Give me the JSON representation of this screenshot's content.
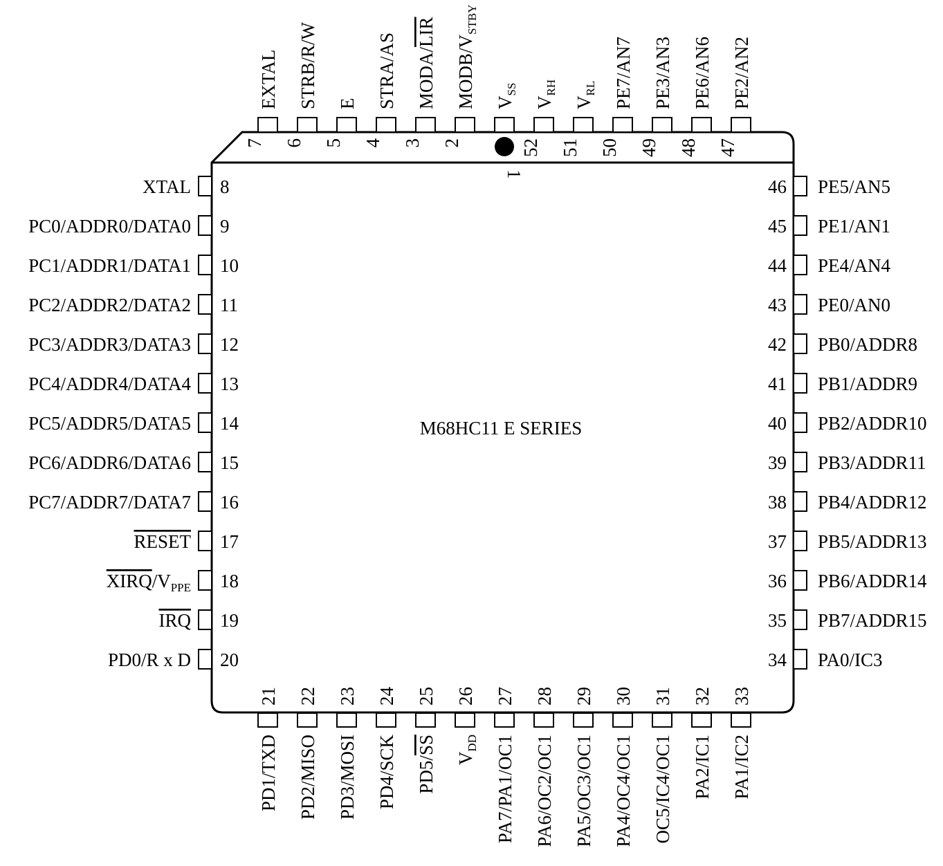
{
  "title": "M68HC11 E SERIES",
  "pins_top": [
    {
      "num": "7",
      "label": [
        {
          "t": "EXTAL"
        }
      ]
    },
    {
      "num": "6",
      "label": [
        {
          "t": "STRB/R/W"
        }
      ]
    },
    {
      "num": "5",
      "label": [
        {
          "t": "E"
        }
      ]
    },
    {
      "num": "4",
      "label": [
        {
          "t": "STRA/AS"
        }
      ]
    },
    {
      "num": "3",
      "label": [
        {
          "t": "MODA/"
        },
        {
          "t": "LIR",
          "o": true
        }
      ]
    },
    {
      "num": "2",
      "label": [
        {
          "t": "MODB/V"
        },
        {
          "t": "STBY",
          "s": true
        }
      ]
    },
    {
      "num": "1",
      "label": [
        {
          "t": "V"
        },
        {
          "t": "SS",
          "s": true
        }
      ]
    },
    {
      "num": "52",
      "label": [
        {
          "t": "V"
        },
        {
          "t": "RH",
          "s": true
        }
      ]
    },
    {
      "num": "51",
      "label": [
        {
          "t": "V"
        },
        {
          "t": "RL",
          "s": true
        }
      ]
    },
    {
      "num": "50",
      "label": [
        {
          "t": "PE7/AN7"
        }
      ]
    },
    {
      "num": "49",
      "label": [
        {
          "t": "PE3/AN3"
        }
      ]
    },
    {
      "num": "48",
      "label": [
        {
          "t": "PE6/AN6"
        }
      ]
    },
    {
      "num": "47",
      "label": [
        {
          "t": "PE2/AN2"
        }
      ]
    }
  ],
  "pins_left": [
    {
      "num": "8",
      "label": [
        {
          "t": "XTAL"
        }
      ]
    },
    {
      "num": "9",
      "label": [
        {
          "t": "PC0/ADDR0/DATA0"
        }
      ]
    },
    {
      "num": "10",
      "label": [
        {
          "t": "PC1/ADDR1/DATA1"
        }
      ]
    },
    {
      "num": "11",
      "label": [
        {
          "t": "PC2/ADDR2/DATA2"
        }
      ]
    },
    {
      "num": "12",
      "label": [
        {
          "t": "PC3/ADDR3/DATA3"
        }
      ]
    },
    {
      "num": "13",
      "label": [
        {
          "t": "PC4/ADDR4/DATA4"
        }
      ]
    },
    {
      "num": "14",
      "label": [
        {
          "t": "PC5/ADDR5/DATA5"
        }
      ]
    },
    {
      "num": "15",
      "label": [
        {
          "t": "PC6/ADDR6/DATA6"
        }
      ]
    },
    {
      "num": "16",
      "label": [
        {
          "t": "PC7/ADDR7/DATA7"
        }
      ]
    },
    {
      "num": "17",
      "label": [
        {
          "t": "RESET",
          "o": true
        }
      ]
    },
    {
      "num": "18",
      "label": [
        {
          "t": "XIRQ",
          "o": true
        },
        {
          "t": "/V"
        },
        {
          "t": "PPE",
          "s": true
        }
      ]
    },
    {
      "num": "19",
      "label": [
        {
          "t": "IRQ",
          "o": true
        }
      ]
    },
    {
      "num": "20",
      "label": [
        {
          "t": "PD0/R x D"
        }
      ]
    }
  ],
  "pins_right": [
    {
      "num": "46",
      "label": [
        {
          "t": "PE5/AN5"
        }
      ]
    },
    {
      "num": "45",
      "label": [
        {
          "t": "PE1/AN1"
        }
      ]
    },
    {
      "num": "44",
      "label": [
        {
          "t": "PE4/AN4"
        }
      ]
    },
    {
      "num": "43",
      "label": [
        {
          "t": "PE0/AN0"
        }
      ]
    },
    {
      "num": "42",
      "label": [
        {
          "t": "PB0/ADDR8"
        }
      ]
    },
    {
      "num": "41",
      "label": [
        {
          "t": "PB1/ADDR9"
        }
      ]
    },
    {
      "num": "40",
      "label": [
        {
          "t": "PB2/ADDR10"
        }
      ]
    },
    {
      "num": "39",
      "label": [
        {
          "t": "PB3/ADDR11"
        }
      ]
    },
    {
      "num": "38",
      "label": [
        {
          "t": "PB4/ADDR12"
        }
      ]
    },
    {
      "num": "37",
      "label": [
        {
          "t": "PB5/ADDR13"
        }
      ]
    },
    {
      "num": "36",
      "label": [
        {
          "t": "PB6/ADDR14"
        }
      ]
    },
    {
      "num": "35",
      "label": [
        {
          "t": "PB7/ADDR15"
        }
      ]
    },
    {
      "num": "34",
      "label": [
        {
          "t": "PA0/IC3"
        }
      ]
    }
  ],
  "pins_bottom": [
    {
      "num": "21",
      "label": [
        {
          "t": "PD1/TXD"
        }
      ]
    },
    {
      "num": "22",
      "label": [
        {
          "t": "PD2/MISO"
        }
      ]
    },
    {
      "num": "23",
      "label": [
        {
          "t": "PD3/MOSI"
        }
      ]
    },
    {
      "num": "24",
      "label": [
        {
          "t": "PD4/SCK"
        }
      ]
    },
    {
      "num": "25",
      "label": [
        {
          "t": "PD5/"
        },
        {
          "t": "SS",
          "o": true
        }
      ]
    },
    {
      "num": "26",
      "label": [
        {
          "t": "V"
        },
        {
          "t": "DD",
          "s": true
        }
      ]
    },
    {
      "num": "27",
      "label": [
        {
          "t": "PA7/PA1/OC1"
        }
      ]
    },
    {
      "num": "28",
      "label": [
        {
          "t": "PA6/OC2/OC1"
        }
      ]
    },
    {
      "num": "29",
      "label": [
        {
          "t": "PA5/OC3/OC1"
        }
      ]
    },
    {
      "num": "30",
      "label": [
        {
          "t": "PA4/OC4/OC1"
        }
      ]
    },
    {
      "num": "31",
      "label": [
        {
          "t": "OC5/IC4/OC1"
        }
      ]
    },
    {
      "num": "32",
      "label": [
        {
          "t": "PA2/IC1"
        }
      ]
    },
    {
      "num": "33",
      "label": [
        {
          "t": "PA1/IC2"
        }
      ]
    }
  ]
}
